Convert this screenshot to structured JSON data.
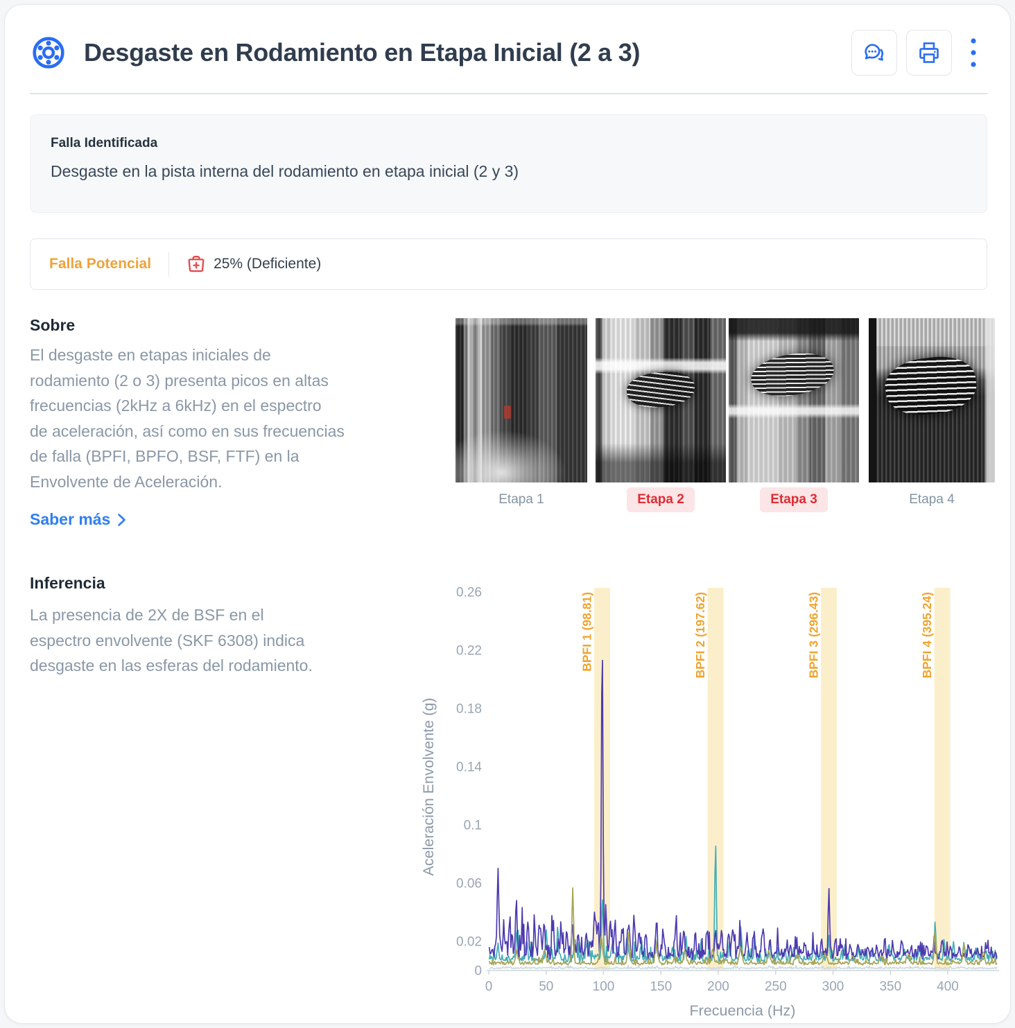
{
  "header": {
    "title": "Desgaste en Rodamiento en Etapa Inicial (2 a 3)",
    "icons": {
      "left": "bearing-icon",
      "actions": [
        "chat-icon",
        "print-icon",
        "kebab-icon"
      ]
    }
  },
  "fault_box": {
    "label": "Falla Identificada",
    "description": "Desgaste en la pista interna del rodamiento en etapa inicial (2 y 3)"
  },
  "status_bar": {
    "badge": "Falla Potencial",
    "badge_color": "#eda33a",
    "health_icon": "medkit-icon",
    "health_icon_color": "#e5484d",
    "health": "25% (Deficiente)"
  },
  "about": {
    "heading": "Sobre",
    "body": "El desgaste en etapas iniciales de\nrodamiento (2 o 3) presenta picos en altas\nfrecuencias (2kHz a 6kHz) en el espectro\nde aceleración, así como en sus frecuencias\nde falla (BPFI, BPFO, BSF, FTF) en la\nEnvolvente de Aceleración.",
    "link": "Saber más",
    "link_icon": "chevron-right-icon",
    "link_color": "#2f7ff2"
  },
  "stages": [
    {
      "label": "Etapa 1",
      "highlight": false
    },
    {
      "label": "Etapa 2",
      "highlight": true
    },
    {
      "label": "Etapa 3",
      "highlight": true
    },
    {
      "label": "Etapa 4",
      "highlight": false
    }
  ],
  "inference": {
    "heading": "Inferencia",
    "body": "La presencia de 2X de BSF en el\nespectro envolvente (SKF 6308) indica\ndesgaste en las esferas del rodamiento."
  },
  "ui_colors": {
    "accent_blue": "#2a6df2",
    "title_text": "#303d4e",
    "body_gray": "#8a97a7",
    "alert_red": "#df2b33",
    "alert_pink_bg": "#fbe5e6"
  },
  "chart_data": {
    "type": "line",
    "title": "",
    "xlabel": "Frecuencia (Hz)",
    "ylabel": "Aceleración Envolvente (g)",
    "xlim": [
      0,
      443
    ],
    "ylim": [
      0,
      0.27
    ],
    "xticks": [
      0,
      50,
      100,
      150,
      200,
      250,
      300,
      350,
      400
    ],
    "yticks": [
      0,
      0.02,
      0.06,
      0.1,
      0.14,
      0.18,
      0.22,
      0.26
    ],
    "grid": false,
    "legend": "none",
    "axis_color": "#ccd5de",
    "tick_label_color": "#99a5b3",
    "axis_title_color": "#8c99a9",
    "fault_bands": {
      "color": "#fbefcb",
      "label_color": "#f1a42f",
      "half_width_hz": 7,
      "items": [
        {
          "label": "BPFI 1 (98.81)",
          "freq": 98.81
        },
        {
          "label": "BPFI 2 (197.62)",
          "freq": 197.62
        },
        {
          "label": "BPFI 3 (296.43)",
          "freq": 296.43
        },
        {
          "label": "BPFI 4 (395.24)",
          "freq": 395.24
        }
      ]
    },
    "series": [
      {
        "name": "baseline-flat",
        "color": "#cdd7e0",
        "noise_floor": 0.0013,
        "noise_amp": 0.0008,
        "regions": [
          {
            "to": 443,
            "mul": 1
          }
        ],
        "peaks": []
      },
      {
        "name": "espectro-teal",
        "color": "#43adb5",
        "noise_floor": 0.0065,
        "noise_amp": 0.005,
        "regions": [
          {
            "to": 240,
            "mul": 1
          },
          {
            "to": 443,
            "mul": 0.75
          }
        ],
        "peaks": [
          [
            8,
            0.013,
            1
          ],
          [
            25,
            0.02,
            1
          ],
          [
            33,
            0.013,
            1
          ],
          [
            50,
            0.018,
            1
          ],
          [
            60,
            0.011,
            1
          ],
          [
            75,
            0.013,
            1
          ],
          [
            86,
            0.011,
            1
          ],
          [
            98.81,
            0.04,
            0.9
          ],
          [
            108,
            0.013,
            1
          ],
          [
            120,
            0.013,
            1
          ],
          [
            133,
            0.011,
            1
          ],
          [
            146,
            0.011,
            1
          ],
          [
            160,
            0.009,
            1
          ],
          [
            172,
            0.013,
            1
          ],
          [
            185,
            0.011,
            1
          ],
          [
            197.62,
            0.082,
            0.9
          ],
          [
            210,
            0.013,
            1
          ],
          [
            220,
            0.015,
            1
          ],
          [
            232,
            0.011,
            1
          ],
          [
            245,
            0.013,
            1
          ],
          [
            258,
            0.008,
            1
          ],
          [
            270,
            0.007,
            1
          ],
          [
            283,
            0.007,
            1
          ],
          [
            296.43,
            0.015,
            1
          ],
          [
            310,
            0.007,
            1
          ],
          [
            322,
            0.007,
            1
          ],
          [
            335,
            0.006,
            1
          ],
          [
            350,
            0.006,
            1
          ],
          [
            362,
            0.006,
            1
          ],
          [
            375,
            0.007,
            1
          ],
          [
            389,
            0.027,
            0.9
          ],
          [
            397,
            0.011,
            1
          ],
          [
            405,
            0.009,
            1
          ],
          [
            414,
            0.011,
            1
          ],
          [
            425,
            0.007,
            1
          ],
          [
            433,
            0.006,
            1
          ]
        ]
      },
      {
        "name": "espectro-indigo",
        "color": "#4d3ab0",
        "noise_floor": 0.009,
        "noise_amp": 0.0075,
        "regions": [
          {
            "to": 130,
            "mul": 1.1
          },
          {
            "to": 240,
            "mul": 0.95
          },
          {
            "to": 443,
            "mul": 0.68
          }
        ],
        "peaks": [
          [
            8,
            0.054,
            1.1
          ],
          [
            13,
            0.018,
            1
          ],
          [
            18,
            0.02,
            1
          ],
          [
            24,
            0.038,
            1
          ],
          [
            29,
            0.016,
            1
          ],
          [
            34,
            0.024,
            1
          ],
          [
            40,
            0.018,
            1
          ],
          [
            44,
            0.02,
            1
          ],
          [
            48,
            0.018,
            1
          ],
          [
            56,
            0.02,
            1
          ],
          [
            63,
            0.016,
            1
          ],
          [
            68,
            0.015,
            1
          ],
          [
            73,
            0.018,
            1
          ],
          [
            78,
            0.015,
            1
          ],
          [
            85,
            0.017,
            1
          ],
          [
            92,
            0.03,
            1
          ],
          [
            95,
            0.02,
            1
          ],
          [
            98.81,
            0.222,
            0.9
          ],
          [
            102,
            0.027,
            1
          ],
          [
            106,
            0.022,
            1
          ],
          [
            110,
            0.02,
            1
          ],
          [
            116,
            0.016,
            1
          ],
          [
            122,
            0.024,
            1
          ],
          [
            127,
            0.02,
            1
          ],
          [
            131,
            0.018,
            1
          ],
          [
            137,
            0.015,
            1
          ],
          [
            146,
            0.02,
            1
          ],
          [
            152,
            0.015,
            1
          ],
          [
            163,
            0.017,
            1
          ],
          [
            170,
            0.019,
            1
          ],
          [
            180,
            0.015,
            1
          ],
          [
            190,
            0.015,
            1
          ],
          [
            197.62,
            0.018,
            1
          ],
          [
            203,
            0.013,
            1
          ],
          [
            209,
            0.015,
            1
          ],
          [
            213,
            0.019,
            1
          ],
          [
            219,
            0.017,
            1
          ],
          [
            225,
            0.013,
            1
          ],
          [
            231,
            0.013,
            1
          ],
          [
            238,
            0.011,
            1
          ],
          [
            245,
            0.009,
            1
          ],
          [
            252,
            0.008,
            1
          ],
          [
            260,
            0.008,
            1
          ],
          [
            268,
            0.007,
            1
          ],
          [
            275,
            0.008,
            1
          ],
          [
            283,
            0.007,
            1
          ],
          [
            290,
            0.011,
            1
          ],
          [
            296.43,
            0.046,
            0.9
          ],
          [
            302,
            0.009,
            1
          ],
          [
            308,
            0.007,
            1
          ],
          [
            315,
            0.009,
            1
          ],
          [
            322,
            0.007,
            1
          ],
          [
            330,
            0.006,
            1
          ],
          [
            338,
            0.007,
            1
          ],
          [
            345,
            0.006,
            1
          ],
          [
            352,
            0.007,
            1
          ],
          [
            360,
            0.006,
            1
          ],
          [
            368,
            0.006,
            1
          ],
          [
            375,
            0.007,
            1
          ],
          [
            382,
            0.007,
            1
          ],
          [
            388,
            0.009,
            1
          ],
          [
            395,
            0.011,
            1
          ],
          [
            402,
            0.006,
            1
          ],
          [
            410,
            0.006,
            1
          ],
          [
            418,
            0.006,
            1
          ],
          [
            426,
            0.005,
            1
          ],
          [
            433,
            0.005,
            1
          ]
        ]
      },
      {
        "name": "espectro-olive",
        "color": "#a8a455",
        "noise_floor": 0.0042,
        "noise_amp": 0.002,
        "regions": [
          {
            "to": 443,
            "mul": 1
          }
        ],
        "peaks": [
          [
            24.4,
            0.007,
            1.5
          ],
          [
            48.8,
            0.009,
            1.5
          ],
          [
            73.2,
            0.052,
            1
          ],
          [
            98,
            0.018,
            1.6
          ],
          [
            122,
            0.018,
            1.4
          ],
          [
            146.4,
            0.011,
            1.5
          ],
          [
            170.8,
            0.009,
            1.5
          ],
          [
            195.2,
            0.01,
            1.5
          ],
          [
            219.6,
            0.012,
            1.5
          ],
          [
            244,
            0.009,
            1.5
          ],
          [
            268.4,
            0.006,
            1.5
          ],
          [
            292.8,
            0.007,
            1.5
          ],
          [
            317,
            0.005,
            1.5
          ],
          [
            341.6,
            0.005,
            1.5
          ],
          [
            366,
            0.005,
            1.5
          ],
          [
            389,
            0.022,
            1.1
          ],
          [
            414,
            0.013,
            1.2
          ],
          [
            431,
            0.008,
            1.2
          ]
        ]
      }
    ]
  }
}
